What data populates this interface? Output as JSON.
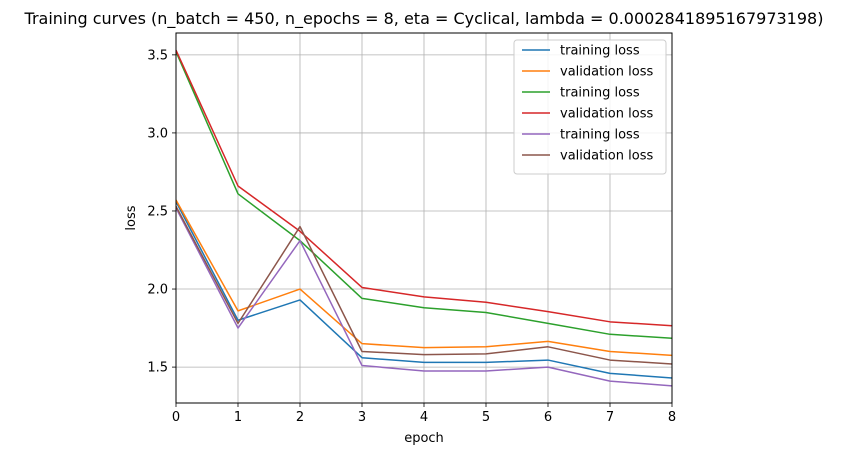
{
  "chart_data": {
    "type": "line",
    "title": "Training curves (n_batch = 450, n_epochs = 8, eta = Cyclical, lambda = 0.0002841895167973198)",
    "xlabel": "epoch",
    "ylabel": "loss",
    "xlim": [
      0,
      8
    ],
    "ylim": [
      1.27,
      3.64
    ],
    "xticks": [
      0,
      1,
      2,
      3,
      4,
      5,
      6,
      7,
      8
    ],
    "yticks": [
      1.5,
      2.0,
      2.5,
      3.0,
      3.5
    ],
    "ytick_labels": [
      "1.5",
      "2.0",
      "2.5",
      "3.0",
      "3.5"
    ],
    "grid": true,
    "legend_position": "top-right",
    "x": [
      0,
      1,
      2,
      3,
      4,
      5,
      6,
      7,
      8
    ],
    "series": [
      {
        "name": "training loss",
        "color": "#1f77b4",
        "values": [
          2.56,
          1.8,
          1.93,
          1.56,
          1.53,
          1.53,
          1.545,
          1.46,
          1.43
        ]
      },
      {
        "name": "validation loss",
        "color": "#ff7f0e",
        "values": [
          2.57,
          1.86,
          2.0,
          1.65,
          1.625,
          1.63,
          1.665,
          1.6,
          1.575
        ]
      },
      {
        "name": "training loss",
        "color": "#2ca02c",
        "values": [
          3.52,
          2.61,
          2.31,
          1.94,
          1.88,
          1.85,
          1.78,
          1.71,
          1.685
        ]
      },
      {
        "name": "validation loss",
        "color": "#d62728",
        "values": [
          3.53,
          2.66,
          2.37,
          2.01,
          1.95,
          1.915,
          1.855,
          1.79,
          1.765
        ]
      },
      {
        "name": "training loss",
        "color": "#9467bd",
        "values": [
          2.52,
          1.75,
          2.31,
          1.51,
          1.475,
          1.475,
          1.5,
          1.41,
          1.38
        ]
      },
      {
        "name": "validation loss",
        "color": "#8c564b",
        "values": [
          2.53,
          1.78,
          2.4,
          1.6,
          1.58,
          1.585,
          1.63,
          1.545,
          1.52
        ]
      }
    ]
  }
}
